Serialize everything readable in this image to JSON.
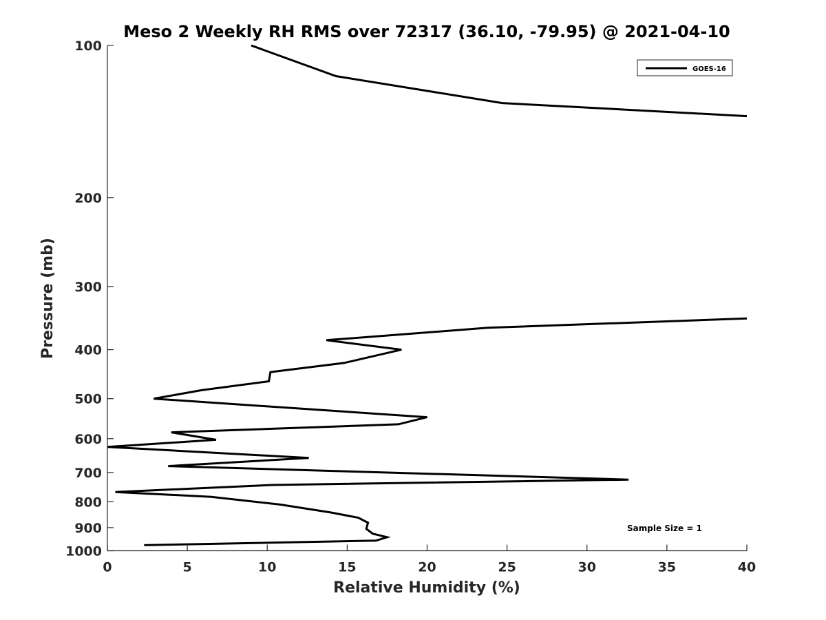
{
  "chart_data": {
    "type": "line",
    "title": "Meso 2 Weekly RH RMS over 72317 (36.10, -79.95) @ 2021-04-10",
    "xlabel": "Relative Humidity (%)",
    "ylabel": "Pressure (mb)",
    "xlim": [
      0,
      40
    ],
    "ylim": [
      100,
      1000
    ],
    "y_scale": "log",
    "y_reversed": true,
    "grid": false,
    "legend_position": "top-right",
    "x_ticks": [
      0,
      5,
      10,
      15,
      20,
      25,
      30,
      35,
      40
    ],
    "x_tick_labels": [
      "0",
      "5",
      "10",
      "15",
      "20",
      "25",
      "30",
      "35",
      "40"
    ],
    "y_ticks": [
      100,
      200,
      300,
      400,
      500,
      600,
      700,
      800,
      900,
      1000
    ],
    "y_tick_labels": [
      "100",
      "200",
      "300",
      "400",
      "500",
      "600",
      "700",
      "800",
      "900",
      "1000"
    ],
    "series": [
      {
        "name": "GOES-16",
        "color": "#000000",
        "segments": [
          [
            {
              "x": 9.0,
              "y": 100
            },
            {
              "x": 14.3,
              "y": 115
            },
            {
              "x": 24.7,
              "y": 130
            },
            {
              "x": 40.0,
              "y": 138
            }
          ],
          [
            {
              "x": 40.0,
              "y": 347
            },
            {
              "x": 23.8,
              "y": 362
            },
            {
              "x": 13.7,
              "y": 383
            },
            {
              "x": 18.4,
              "y": 400
            },
            {
              "x": 14.8,
              "y": 425
            },
            {
              "x": 10.2,
              "y": 443
            },
            {
              "x": 10.1,
              "y": 462
            },
            {
              "x": 5.9,
              "y": 481
            },
            {
              "x": 2.9,
              "y": 500
            },
            {
              "x": 20.0,
              "y": 544
            },
            {
              "x": 18.2,
              "y": 562
            },
            {
              "x": 4.0,
              "y": 583
            },
            {
              "x": 6.8,
              "y": 603
            },
            {
              "x": 0.0,
              "y": 623
            },
            {
              "x": 12.6,
              "y": 655
            },
            {
              "x": 3.8,
              "y": 680
            },
            {
              "x": 32.6,
              "y": 723
            },
            {
              "x": 10.3,
              "y": 741
            },
            {
              "x": 0.5,
              "y": 765
            },
            {
              "x": 6.5,
              "y": 782
            },
            {
              "x": 10.8,
              "y": 810
            },
            {
              "x": 14.0,
              "y": 840
            },
            {
              "x": 15.7,
              "y": 860
            },
            {
              "x": 16.3,
              "y": 880
            },
            {
              "x": 16.2,
              "y": 905
            },
            {
              "x": 16.6,
              "y": 925
            },
            {
              "x": 17.5,
              "y": 940
            },
            {
              "x": 16.8,
              "y": 955
            },
            {
              "x": 2.3,
              "y": 975
            }
          ]
        ]
      }
    ],
    "annotations": [
      "Sample Size = 1"
    ]
  }
}
